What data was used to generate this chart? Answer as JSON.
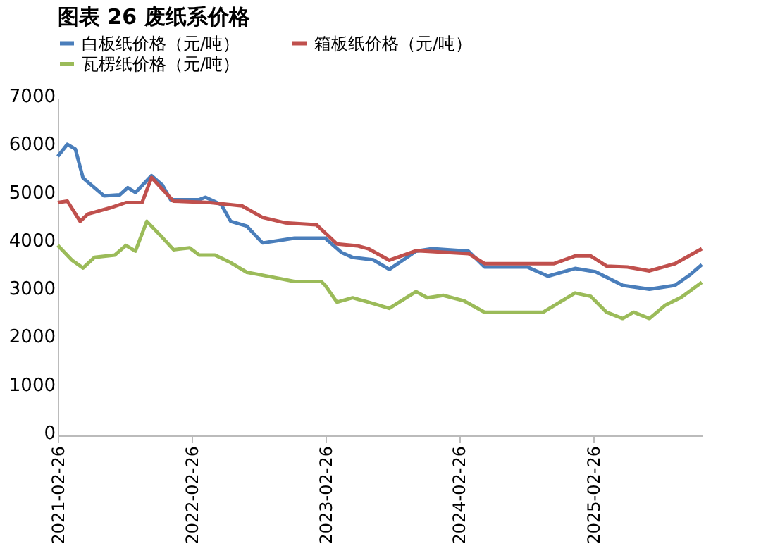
{
  "chart_data": {
    "type": "line",
    "title": "图表 26 废纸系价格",
    "series": [
      {
        "name": "白板纸价格（元/吨）",
        "color": "#4a7ebb",
        "x": [
          "2021-02-26",
          "2021-03-24",
          "2021-04-15",
          "2021-05-06",
          "2021-06-06",
          "2021-07-02",
          "2021-08-14",
          "2021-09-05",
          "2021-09-26",
          "2021-11-09",
          "2021-12-09",
          "2021-12-31",
          "2022-03-19",
          "2022-04-05",
          "2022-05-18",
          "2022-06-13",
          "2022-07-27",
          "2022-09-08",
          "2022-10-21",
          "2022-12-04",
          "2023-02-26",
          "2023-04-12",
          "2023-05-12",
          "2023-07-07",
          "2023-08-20",
          "2023-11-01",
          "2023-12-15",
          "2024-03-23",
          "2024-05-06",
          "2024-08-31",
          "2024-10-26",
          "2025-01-08",
          "2025-03-05",
          "2025-05-18",
          "2025-07-30",
          "2025-10-08",
          "2025-11-20",
          "2025-12-20"
        ],
        "values": [
          5800,
          6050,
          5950,
          5350,
          5150,
          4980,
          5000,
          5150,
          5050,
          5400,
          5200,
          4900,
          4900,
          4950,
          4800,
          4450,
          4350,
          4000,
          4050,
          4100,
          4100,
          3800,
          3700,
          3650,
          3450,
          3830,
          3880,
          3830,
          3500,
          3500,
          3310,
          3470,
          3400,
          3120,
          3040,
          3120,
          3350,
          3550
        ]
      },
      {
        "name": "箱板纸价格（元/吨）",
        "color": "#c0504d",
        "x": [
          "2021-02-26",
          "2021-03-24",
          "2021-04-28",
          "2021-05-19",
          "2021-07-19",
          "2021-08-31",
          "2021-10-14",
          "2021-11-09",
          "2022-01-08",
          "2022-04-18",
          "2022-07-14",
          "2022-09-08",
          "2022-11-08",
          "2023-02-02",
          "2023-03-30",
          "2023-05-25",
          "2023-06-24",
          "2023-08-20",
          "2023-11-01",
          "2024-03-23",
          "2024-05-06",
          "2024-11-12",
          "2025-01-08",
          "2025-02-20",
          "2025-04-04",
          "2025-05-31",
          "2025-07-30",
          "2025-10-08",
          "2025-12-20"
        ],
        "values": [
          4840,
          4870,
          4450,
          4600,
          4730,
          4840,
          4840,
          5360,
          4870,
          4840,
          4770,
          4530,
          4420,
          4380,
          3980,
          3940,
          3880,
          3640,
          3840,
          3780,
          3570,
          3570,
          3730,
          3730,
          3520,
          3500,
          3420,
          3570,
          3880
        ]
      },
      {
        "name": "瓦楞纸价格（元/吨）",
        "color": "#9bbb59",
        "x": [
          "2021-02-26",
          "2021-04-06",
          "2021-05-06",
          "2021-06-06",
          "2021-08-01",
          "2021-08-31",
          "2021-09-26",
          "2021-10-27",
          "2021-12-09",
          "2022-01-08",
          "2022-02-21",
          "2022-03-19",
          "2022-05-01",
          "2022-06-13",
          "2022-07-27",
          "2022-09-08",
          "2022-12-04",
          "2023-02-15",
          "2023-02-26",
          "2023-03-30",
          "2023-05-12",
          "2023-06-24",
          "2023-08-20",
          "2023-11-01",
          "2023-12-02",
          "2024-01-14",
          "2024-03-10",
          "2024-05-06",
          "2024-10-13",
          "2025-01-08",
          "2025-02-20",
          "2025-04-04",
          "2025-05-18",
          "2025-06-17",
          "2025-07-30",
          "2025-09-12",
          "2025-10-25",
          "2025-12-20"
        ],
        "values": [
          3950,
          3640,
          3480,
          3700,
          3750,
          3950,
          3830,
          4450,
          4110,
          3860,
          3900,
          3750,
          3750,
          3590,
          3390,
          3330,
          3200,
          3200,
          3120,
          2770,
          2860,
          2770,
          2640,
          2990,
          2860,
          2910,
          2800,
          2560,
          2560,
          2960,
          2890,
          2560,
          2430,
          2560,
          2430,
          2710,
          2870,
          3180
        ]
      }
    ],
    "xlim": [
      "2021-02-26",
      "2025-12-20"
    ],
    "xticks": [
      "2021-02-26",
      "2022-02-26",
      "2023-02-26",
      "2024-02-26",
      "2025-02-26"
    ],
    "ylim": [
      0,
      7000
    ],
    "yticks": [
      0,
      1000,
      2000,
      3000,
      4000,
      5000,
      6000,
      7000
    ],
    "grid": false,
    "legend": "top",
    "marker": "none",
    "line_style": "solid"
  }
}
